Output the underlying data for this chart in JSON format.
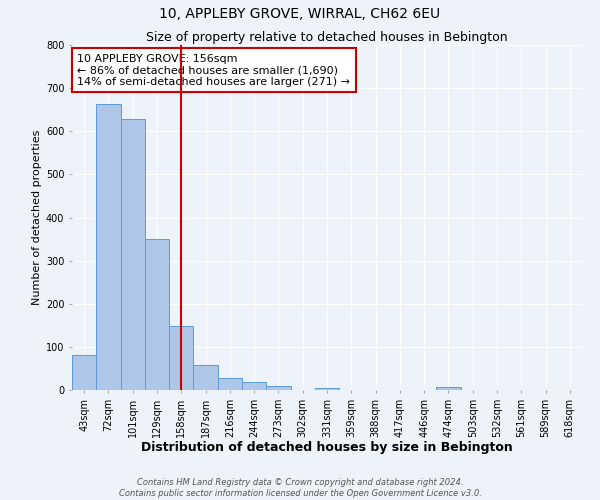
{
  "title": "10, APPLEBY GROVE, WIRRAL, CH62 6EU",
  "subtitle": "Size of property relative to detached houses in Bebington",
  "xlabel": "Distribution of detached houses by size in Bebington",
  "ylabel": "Number of detached properties",
  "bar_labels": [
    "43sqm",
    "72sqm",
    "101sqm",
    "129sqm",
    "158sqm",
    "187sqm",
    "216sqm",
    "244sqm",
    "273sqm",
    "302sqm",
    "331sqm",
    "359sqm",
    "388sqm",
    "417sqm",
    "446sqm",
    "474sqm",
    "503sqm",
    "532sqm",
    "561sqm",
    "589sqm",
    "618sqm"
  ],
  "bar_values": [
    82,
    663,
    628,
    350,
    148,
    57,
    27,
    18,
    10,
    0,
    5,
    0,
    0,
    0,
    0,
    8,
    0,
    0,
    0,
    0,
    0
  ],
  "bar_color": "#aec6e8",
  "bar_edge_color": "#5b9bd5",
  "vline_index": 4,
  "annotation_line1": "10 APPLEBY GROVE: 156sqm",
  "annotation_line2": "← 86% of detached houses are smaller (1,690)",
  "annotation_line3": "14% of semi-detached houses are larger (271) →",
  "annotation_box_color": "#ffffff",
  "annotation_box_edge_color": "#cc0000",
  "vline_color": "#cc0000",
  "ylim": [
    0,
    800
  ],
  "yticks": [
    0,
    100,
    200,
    300,
    400,
    500,
    600,
    700,
    800
  ],
  "footer_line1": "Contains HM Land Registry data © Crown copyright and database right 2024.",
  "footer_line2": "Contains public sector information licensed under the Open Government Licence v3.0.",
  "background_color": "#eef2f9",
  "grid_color": "#ffffff",
  "title_fontsize": 10,
  "subtitle_fontsize": 9,
  "xlabel_fontsize": 9,
  "ylabel_fontsize": 8,
  "annotation_fontsize": 8,
  "tick_fontsize": 7,
  "footer_fontsize": 6
}
